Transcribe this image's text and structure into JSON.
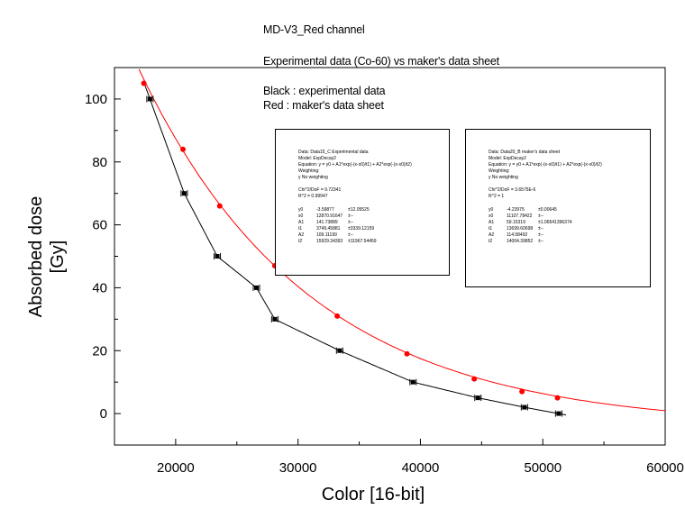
{
  "annotations": {
    "line1": "MD-V3_Red channel",
    "line2": "Experimental data (Co-60) vs maker's data sheet",
    "line3": "Black : experimental data",
    "line4": "Red : maker's data sheet"
  },
  "fit_boxes": {
    "experimental": {
      "header": [
        "Data: Data15_C Experimental data",
        "Model: ExpDecay2",
        "Equation: y = y0 + A1*exp(-(x-x0)/t1) + A2*exp(-(x-x0)/t2)",
        "Weighting:",
        "y        No weighting",
        "",
        "Chi^2/DoF      = 9.72341",
        "R^2     = 0.99947"
      ],
      "params": [
        [
          "y0",
          "-3.59877",
          "±12.05525"
        ],
        [
          "x0",
          "12870.91647",
          "±--"
        ],
        [
          "A1",
          "141.73889",
          "±--"
        ],
        [
          "t1",
          "3749.45881",
          "±3339.12159"
        ],
        [
          "A2",
          "109.11199",
          "±--"
        ],
        [
          "t2",
          "15929.34393",
          "±11967.54459"
        ]
      ]
    },
    "datasheet": {
      "header": [
        "Data: Data20_B maker's data sheet",
        "Model: ExpDecay2",
        "Equation: y = y0 + A1*exp(-(x-x0)/t1) + A2*exp(-(x-x0)/t2)",
        "Weighting:",
        "y        No weighting",
        "",
        "Chi^2/DoF      = 3.6575E-6",
        "R^2     = 1"
      ],
      "params": [
        [
          "y0",
          "-4.23975",
          "±0.00645"
        ],
        [
          "x0",
          "11107.78422",
          "±--"
        ],
        [
          "A1",
          "59.15319",
          "±1.06541396374"
        ],
        [
          "t1",
          "13699.60698",
          "±--"
        ],
        [
          "A2",
          "114.58492",
          "±--"
        ],
        [
          "t2",
          "14004.39852",
          "±--"
        ]
      ]
    }
  },
  "chart_data": {
    "type": "scatter",
    "title": "",
    "xlabel": "Color [16-bit]",
    "ylabel_lines": [
      "Absorbed dose",
      "[Gy]"
    ],
    "xlim": [
      15000,
      60000
    ],
    "ylim": [
      -10,
      110
    ],
    "xticks": [
      20000,
      30000,
      40000,
      50000,
      60000
    ],
    "yticks": [
      0,
      20,
      40,
      60,
      80,
      100
    ],
    "xtick_labels": [
      "20000",
      "30000",
      "40000",
      "50000",
      "60000"
    ],
    "ytick_labels": [
      "0",
      "20",
      "40",
      "60",
      "80",
      "100"
    ],
    "grid": false,
    "series": [
      {
        "color": "#000000",
        "marker": "square-errorbar",
        "x": [
          17900,
          20700,
          23400,
          26600,
          28100,
          33400,
          39400,
          44700,
          48500,
          51300
        ],
        "y": [
          100,
          70,
          50,
          40,
          30,
          20,
          10,
          5,
          2,
          0
        ],
        "fit_x": [
          17500,
          52000
        ]
      },
      {
        "color": "#ff0000",
        "marker": "circle",
        "x": [
          17400,
          20600,
          23600,
          28100,
          33200,
          38900,
          44400,
          48300,
          51200
        ],
        "y": [
          105,
          84,
          66,
          47,
          31,
          19,
          11,
          7,
          5
        ],
        "fit_x": [
          17000,
          60000
        ]
      }
    ]
  }
}
